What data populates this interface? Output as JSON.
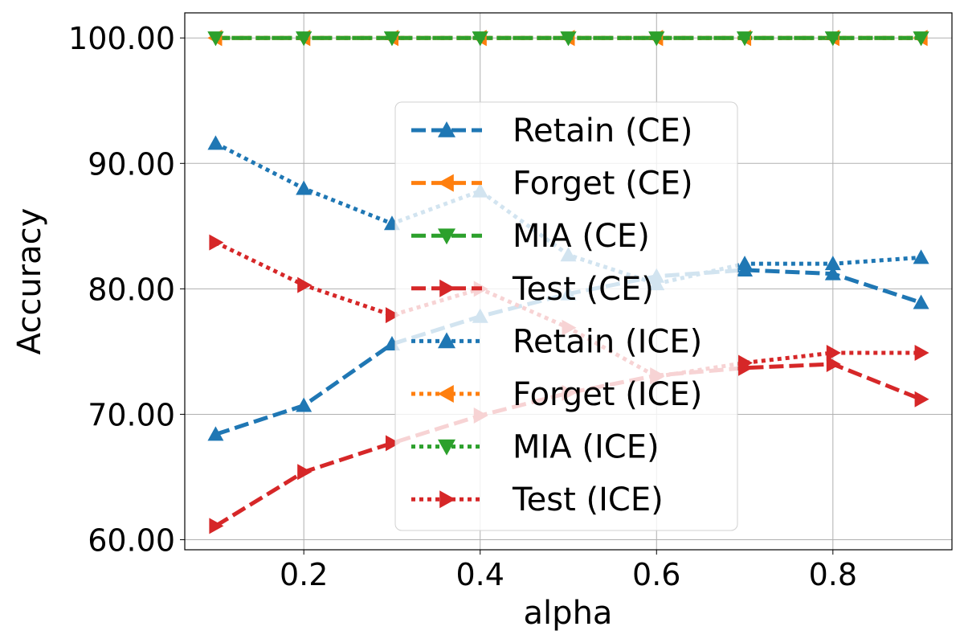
{
  "chart_data": {
    "type": "line",
    "title": "",
    "xlabel": "alpha",
    "ylabel": "Accuracy",
    "x": [
      0.1,
      0.2,
      0.3,
      0.4,
      0.5,
      0.6,
      0.7,
      0.8,
      0.9
    ],
    "xlim": [
      0.065,
      0.935
    ],
    "ylim": [
      59.2,
      102
    ],
    "xticks": [
      0.2,
      0.4,
      0.6,
      0.8
    ],
    "xtick_labels": [
      "0.2",
      "0.4",
      "0.6",
      "0.8"
    ],
    "yticks": [
      60,
      70,
      80,
      90,
      100
    ],
    "ytick_labels": [
      "60.00",
      "70.00",
      "80.00",
      "90.00",
      "100.00"
    ],
    "grid": true,
    "legend_position": "center",
    "series": [
      {
        "name": "Retain (CE)",
        "color": "#1f77b4",
        "linestyle": "dashed",
        "marker": "triangle-up",
        "values": [
          68.4,
          70.7,
          75.6,
          77.8,
          79.6,
          81.0,
          81.5,
          81.2,
          78.9
        ]
      },
      {
        "name": "Forget (CE)",
        "color": "#ff7f0e",
        "linestyle": "dashed",
        "marker": "triangle-left",
        "values": [
          100,
          100,
          100,
          100,
          100,
          100,
          100,
          100,
          100
        ]
      },
      {
        "name": "MIA (CE)",
        "color": "#2ca02c",
        "linestyle": "dashed",
        "marker": "triangle-down",
        "values": [
          100,
          100,
          100,
          100,
          100,
          100,
          100,
          100,
          100
        ]
      },
      {
        "name": "Test (CE)",
        "color": "#d62728",
        "linestyle": "dashed",
        "marker": "triangle-right",
        "values": [
          61.1,
          65.4,
          67.7,
          69.9,
          71.7,
          73.1,
          73.7,
          74.0,
          71.2
        ]
      },
      {
        "name": "Retain (ICE)",
        "color": "#1f77b4",
        "linestyle": "dotted",
        "marker": "triangle-up",
        "values": [
          91.6,
          88.0,
          85.2,
          87.8,
          82.7,
          80.4,
          82.0,
          82.0,
          82.5
        ]
      },
      {
        "name": "Forget (ICE)",
        "color": "#ff7f0e",
        "linestyle": "dotted",
        "marker": "triangle-left",
        "values": [
          100,
          100,
          100,
          100,
          100,
          100,
          100,
          100,
          100
        ]
      },
      {
        "name": "MIA (ICE)",
        "color": "#2ca02c",
        "linestyle": "dotted",
        "marker": "triangle-down",
        "values": [
          100,
          100,
          100,
          100,
          100,
          100,
          100,
          100,
          100
        ]
      },
      {
        "name": "Test (ICE)",
        "color": "#d62728",
        "linestyle": "dotted",
        "marker": "triangle-right",
        "values": [
          83.7,
          80.3,
          77.9,
          80.0,
          76.9,
          73.0,
          74.1,
          74.9,
          74.9
        ]
      }
    ]
  }
}
